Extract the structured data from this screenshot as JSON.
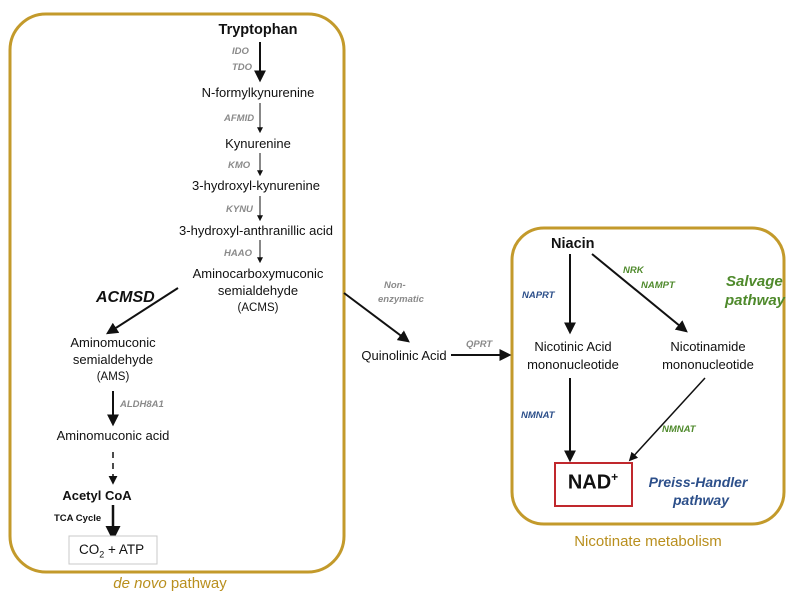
{
  "colors": {
    "box_border": "#c39a2b",
    "enzyme_gray": "#8a8a8a",
    "enzyme_blue": "#2c4f8a",
    "enzyme_green": "#4f8a2c",
    "nad_border": "#c0282d",
    "label_gold": "#b98f1e"
  },
  "de_novo": {
    "tryptophan": "Tryptophan",
    "ido": "IDO",
    "tdo": "TDO",
    "n_formylkynurenine": "N-formylkynurenine",
    "afmid": "AFMID",
    "kynurenine": "Kynurenine",
    "kmo": "KMO",
    "hydroxy_kynurenine": "3-hydroxyl-kynurenine",
    "kynu": "KYNU",
    "hydroxy_anthranilic": "3-hydroxyl-anthranillic acid",
    "haao": "HAAO",
    "acms_line1": "Aminocarboxymuconic",
    "acms_line2": "semialdehyde",
    "acms_abbr": "(ACMS)",
    "acmsd": "ACMSD",
    "ams_line1": "Aminomuconic",
    "ams_line2": "semialdehyde",
    "ams_abbr": "(AMS)",
    "aldh8a1": "ALDH8A1",
    "aminomuconic_acid": "Aminomuconic acid",
    "acetyl_coa": "Acetyl CoA",
    "tca_cycle": "TCA Cycle",
    "co2_prefix": "CO",
    "co2_sub": "2",
    "co2_suffix": " + ATP",
    "pathway_label_italic": "de novo",
    "pathway_label_rest": " pathway"
  },
  "middle": {
    "non_enzymatic_line1": "Non-",
    "non_enzymatic_line2": "enzymatic",
    "quinolinic_acid": "Quinolinic Acid",
    "qprt": "QPRT"
  },
  "nicotinate": {
    "niacin": "Niacin",
    "naprt": "NAPRT",
    "nrk": "NRK",
    "nampt": "NAMPT",
    "salvage_line1": "Salvage",
    "salvage_line2": "pathway",
    "nicotinic_line1": "Nicotinic Acid",
    "nicotinic_line2": "mononucleotide",
    "nicotinamide_line1": "Nicotinamide",
    "nicotinamide_line2": "mononucleotide",
    "nmnat_left": "NMNAT",
    "nmnat_right": "NMNAT",
    "nad": "NAD",
    "nad_sup": "+",
    "preiss_line1": "Preiss-Handler",
    "preiss_line2": "pathway",
    "box_label": "Nicotinate metabolism"
  }
}
